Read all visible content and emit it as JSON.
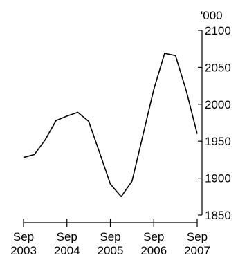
{
  "chart_data": {
    "type": "line",
    "title": "",
    "xlabel": "",
    "ylabel": "'000",
    "y_unit_label": "'000",
    "x_axis": {
      "min": "2003-09",
      "max": "2007-09",
      "ticks": [
        {
          "value": "2003-09",
          "line1": "Sep",
          "line2": "2003"
        },
        {
          "value": "2004-09",
          "line1": "Sep",
          "line2": "2004"
        },
        {
          "value": "2005-09",
          "line1": "Sep",
          "line2": "2005"
        },
        {
          "value": "2006-09",
          "line1": "Sep",
          "line2": "2006"
        },
        {
          "value": "2007-09",
          "line1": "Sep",
          "line2": "2007"
        }
      ]
    },
    "y_axis": {
      "min": 1850,
      "max": 2100,
      "ticks": [
        1850,
        1900,
        1950,
        2000,
        2050,
        2100
      ],
      "position": "right"
    },
    "grid": false,
    "legend": "none",
    "series": [
      {
        "color": "#000000",
        "points": [
          {
            "x": "2003-09",
            "y": 1928
          },
          {
            "x": "2003-12",
            "y": 1932
          },
          {
            "x": "2004-03",
            "y": 1952
          },
          {
            "x": "2004-06",
            "y": 1978
          },
          {
            "x": "2004-09",
            "y": 1984
          },
          {
            "x": "2004-12",
            "y": 1989
          },
          {
            "x": "2005-03",
            "y": 1977
          },
          {
            "x": "2005-06",
            "y": 1935
          },
          {
            "x": "2005-09",
            "y": 1892
          },
          {
            "x": "2005-12",
            "y": 1875
          },
          {
            "x": "2006-03",
            "y": 1896
          },
          {
            "x": "2006-06",
            "y": 1958
          },
          {
            "x": "2006-09",
            "y": 2020
          },
          {
            "x": "2006-12",
            "y": 2069
          },
          {
            "x": "2007-03",
            "y": 2066
          },
          {
            "x": "2007-06",
            "y": 2018
          },
          {
            "x": "2007-09",
            "y": 1960
          }
        ]
      }
    ]
  }
}
